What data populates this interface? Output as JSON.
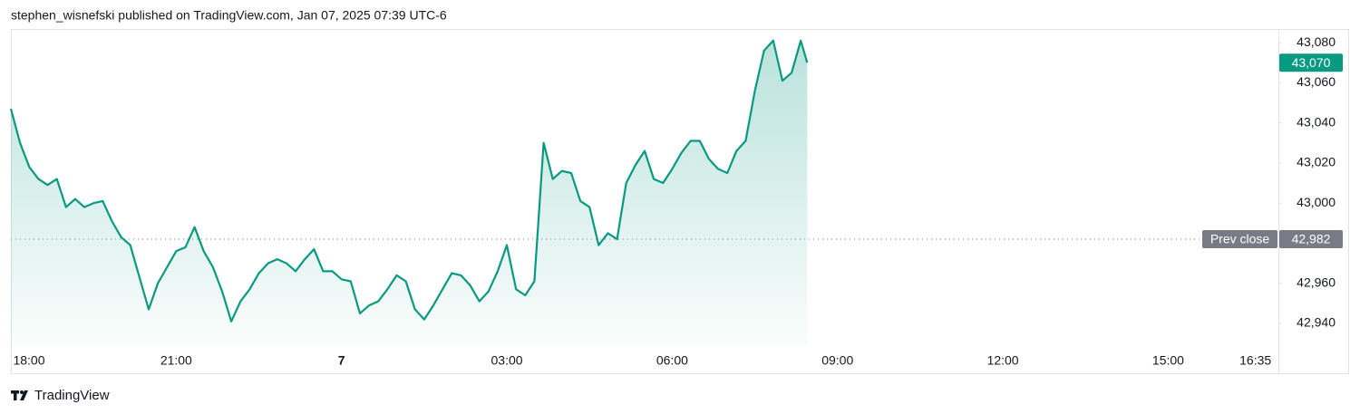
{
  "header": "stephen_wisnefski published on TradingView.com, Jan 07, 2025 07:39 UTC-6",
  "footer": "TradingView",
  "chart_data": {
    "type": "area",
    "color": "#089981",
    "x": [
      "18:00",
      "18:10",
      "18:20",
      "18:30",
      "18:40",
      "18:50",
      "19:00",
      "19:10",
      "19:20",
      "19:30",
      "19:40",
      "19:50",
      "20:00",
      "20:10",
      "20:20",
      "20:30",
      "20:40",
      "20:50",
      "21:00",
      "21:10",
      "21:20",
      "21:30",
      "21:40",
      "21:50",
      "22:00",
      "22:10",
      "22:20",
      "22:30",
      "22:40",
      "22:50",
      "23:00",
      "23:10",
      "23:20",
      "23:30",
      "23:40",
      "23:50",
      "00:00",
      "00:10",
      "00:20",
      "00:30",
      "00:40",
      "00:50",
      "01:00",
      "01:10",
      "01:20",
      "01:30",
      "01:40",
      "01:50",
      "02:00",
      "02:10",
      "02:20",
      "02:30",
      "02:40",
      "02:50",
      "03:00",
      "03:10",
      "03:20",
      "03:30",
      "03:40",
      "03:50",
      "04:00",
      "04:10",
      "04:20",
      "04:30",
      "04:40",
      "04:50",
      "05:00",
      "05:10",
      "05:20",
      "05:30",
      "05:40",
      "05:50",
      "06:00",
      "06:10",
      "06:20",
      "06:30",
      "06:40",
      "06:50",
      "07:00",
      "07:10",
      "07:20",
      "07:30",
      "07:40",
      "07:50",
      "08:00",
      "08:10",
      "08:20",
      "08:27"
    ],
    "values": [
      43047,
      43030,
      43018,
      43012,
      43009,
      43012,
      42998,
      43002,
      42998,
      43000,
      43001,
      42991,
      42983,
      42979,
      42963,
      42947,
      42960,
      42968,
      42976,
      42978,
      42988,
      42976,
      42968,
      42956,
      42941,
      42951,
      42957,
      42965,
      42970,
      42972,
      42970,
      42966,
      42972,
      42977,
      42966,
      42966,
      42962,
      42961,
      42945,
      42949,
      42951,
      42957,
      42964,
      42961,
      42947,
      42942,
      42949,
      42957,
      42965,
      42964,
      42959,
      42951,
      42956,
      42966,
      42979,
      42957,
      42954,
      42961,
      43030,
      43012,
      43016,
      43015,
      43001,
      42998,
      42979,
      42985,
      42982,
      43010,
      43019,
      43026,
      43012,
      43010,
      43017,
      43025,
      43031,
      43031,
      43022,
      43017,
      43015,
      43026,
      43031,
      43056,
      43076,
      43081,
      43061,
      43065,
      43081,
      43070
    ],
    "last_label": "43,070",
    "prev_close": {
      "label": "Prev close",
      "value": 42982,
      "value_label": "42,982"
    },
    "xlim": [
      "18:00",
      "17:00"
    ],
    "xticks": [
      "18:00",
      "21:00",
      {
        "value": "00:00",
        "label": "7"
      },
      "03:00",
      "06:00",
      "09:00",
      "12:00",
      "15:00",
      "16:35"
    ],
    "ylim": [
      42928.7,
      43086.8
    ],
    "yticks": [
      {
        "value": 42940,
        "label": "42,940"
      },
      {
        "value": 42960,
        "label": "42,960"
      },
      {
        "value": 42980,
        "label": "42,980"
      },
      {
        "value": 43000,
        "label": "43,000"
      },
      {
        "value": 43020,
        "label": "43,020"
      },
      {
        "value": 43040,
        "label": "43,040"
      },
      {
        "value": 43060,
        "label": "43,060"
      },
      {
        "value": 43080,
        "label": "43,080"
      }
    ]
  }
}
